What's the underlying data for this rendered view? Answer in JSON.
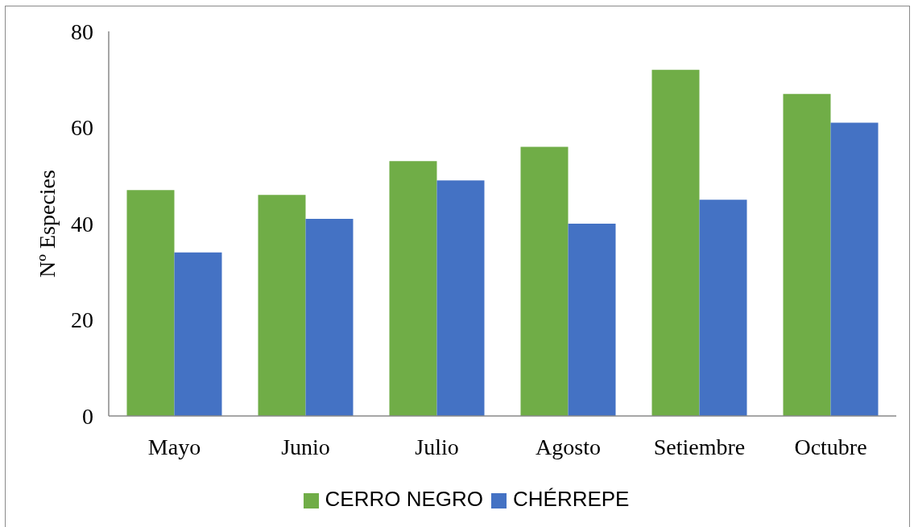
{
  "chart_data": {
    "type": "bar",
    "ylabel": "Nº Especies",
    "categories": [
      "Mayo",
      "Junio",
      "Julio",
      "Agosto",
      "Setiembre",
      "Octubre"
    ],
    "series": [
      {
        "name": "CERRO NEGRO",
        "color": "#70ad47",
        "values": [
          47,
          46,
          53,
          56,
          72,
          67
        ]
      },
      {
        "name": "CHÉRREPE",
        "color": "#4472c4",
        "values": [
          34,
          41,
          49,
          40,
          45,
          61
        ]
      }
    ],
    "ylim": [
      0,
      80
    ],
    "yticks": [
      0,
      20,
      40,
      60,
      80
    ],
    "legend": "bottom"
  }
}
